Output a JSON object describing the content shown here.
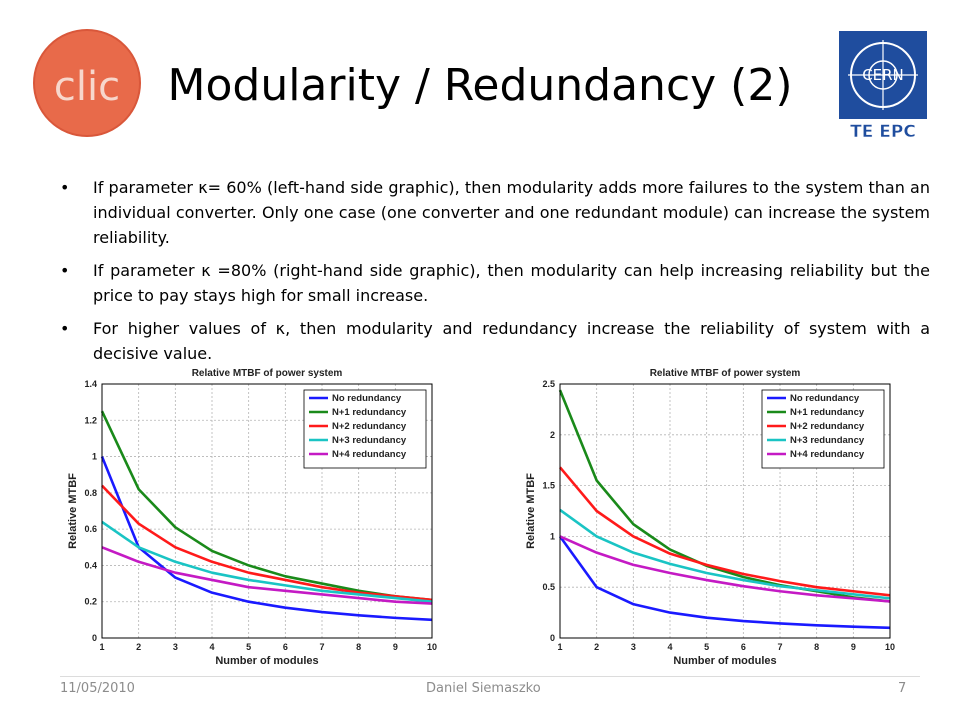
{
  "slide": {
    "title": "Modularity / Redundancy (2)",
    "logo_left_text": "clic",
    "logo_right_text": "CERN",
    "logo_right_sub": "TE EPC",
    "bullets": [
      "If parameter κ= 60% (left-hand side graphic), then modularity adds more failures to the system than an individual converter. Only one case (one converter and one redundant module) can increase the system reliability.",
      "If parameter κ =80% (right-hand side graphic), then modularity can help increasing reliability but the price to pay stays high for small increase.",
      "For higher values of κ, then modularity and redundancy increase the reliability of system with a decisive value."
    ],
    "bullet_symbol": "•",
    "footer": {
      "date": "11/05/2010",
      "author": "Daniel Siemaszko",
      "page": "7"
    }
  },
  "chart_data": [
    {
      "type": "line",
      "title": "Relative MTBF of power system",
      "xlabel": "Number of modules",
      "ylabel": "Relative MTBF",
      "xlim": [
        1,
        10
      ],
      "ylim": [
        0,
        1.4
      ],
      "xticks": [
        1,
        2,
        3,
        4,
        5,
        6,
        7,
        8,
        9,
        10
      ],
      "yticks": [
        0,
        0.2,
        0.4,
        0.6,
        0.8,
        1,
        1.2,
        1.4
      ],
      "grid": true,
      "legend": "top-right",
      "x": [
        1,
        2,
        3,
        4,
        5,
        6,
        7,
        8,
        9,
        10
      ],
      "series": [
        {
          "name": "No redundancy",
          "color": "#1a1aff",
          "values": [
            1.0,
            0.5,
            0.333,
            0.25,
            0.2,
            0.167,
            0.143,
            0.125,
            0.111,
            0.1
          ]
        },
        {
          "name": "N+1 redundancy",
          "color": "#1a8a1a",
          "values": [
            1.25,
            0.82,
            0.61,
            0.48,
            0.4,
            0.34,
            0.3,
            0.26,
            0.23,
            0.21
          ]
        },
        {
          "name": "N+2 redundancy",
          "color": "#ff1a1a",
          "values": [
            0.84,
            0.63,
            0.5,
            0.42,
            0.36,
            0.32,
            0.28,
            0.25,
            0.23,
            0.21
          ]
        },
        {
          "name": "N+3 redundancy",
          "color": "#1ac4c4",
          "values": [
            0.64,
            0.5,
            0.42,
            0.36,
            0.32,
            0.29,
            0.26,
            0.24,
            0.22,
            0.2
          ]
        },
        {
          "name": "N+4 redundancy",
          "color": "#c41ac4",
          "values": [
            0.5,
            0.42,
            0.36,
            0.32,
            0.28,
            0.26,
            0.24,
            0.22,
            0.2,
            0.19
          ]
        }
      ]
    },
    {
      "type": "line",
      "title": "Relative MTBF of power system",
      "xlabel": "Number of modules",
      "ylabel": "Relative MTBF",
      "xlim": [
        1,
        10
      ],
      "ylim": [
        0,
        2.5
      ],
      "xticks": [
        1,
        2,
        3,
        4,
        5,
        6,
        7,
        8,
        9,
        10
      ],
      "yticks": [
        0,
        0.5,
        1,
        1.5,
        2,
        2.5
      ],
      "grid": true,
      "legend": "top-right",
      "x": [
        1,
        2,
        3,
        4,
        5,
        6,
        7,
        8,
        9,
        10
      ],
      "series": [
        {
          "name": "No redundancy",
          "color": "#1a1aff",
          "values": [
            1.0,
            0.5,
            0.333,
            0.25,
            0.2,
            0.167,
            0.143,
            0.125,
            0.111,
            0.1
          ]
        },
        {
          "name": "N+1 redundancy",
          "color": "#1a8a1a",
          "values": [
            2.44,
            1.55,
            1.12,
            0.87,
            0.71,
            0.6,
            0.52,
            0.46,
            0.4,
            0.36
          ]
        },
        {
          "name": "N+2 redundancy",
          "color": "#ff1a1a",
          "values": [
            1.68,
            1.25,
            1.0,
            0.83,
            0.72,
            0.63,
            0.56,
            0.5,
            0.46,
            0.42
          ]
        },
        {
          "name": "N+3 redundancy",
          "color": "#1ac4c4",
          "values": [
            1.26,
            1.0,
            0.84,
            0.73,
            0.64,
            0.57,
            0.51,
            0.47,
            0.43,
            0.39
          ]
        },
        {
          "name": "N+4 redundancy",
          "color": "#c41ac4",
          "values": [
            1.0,
            0.84,
            0.72,
            0.64,
            0.57,
            0.51,
            0.46,
            0.42,
            0.39,
            0.36
          ]
        }
      ]
    }
  ]
}
